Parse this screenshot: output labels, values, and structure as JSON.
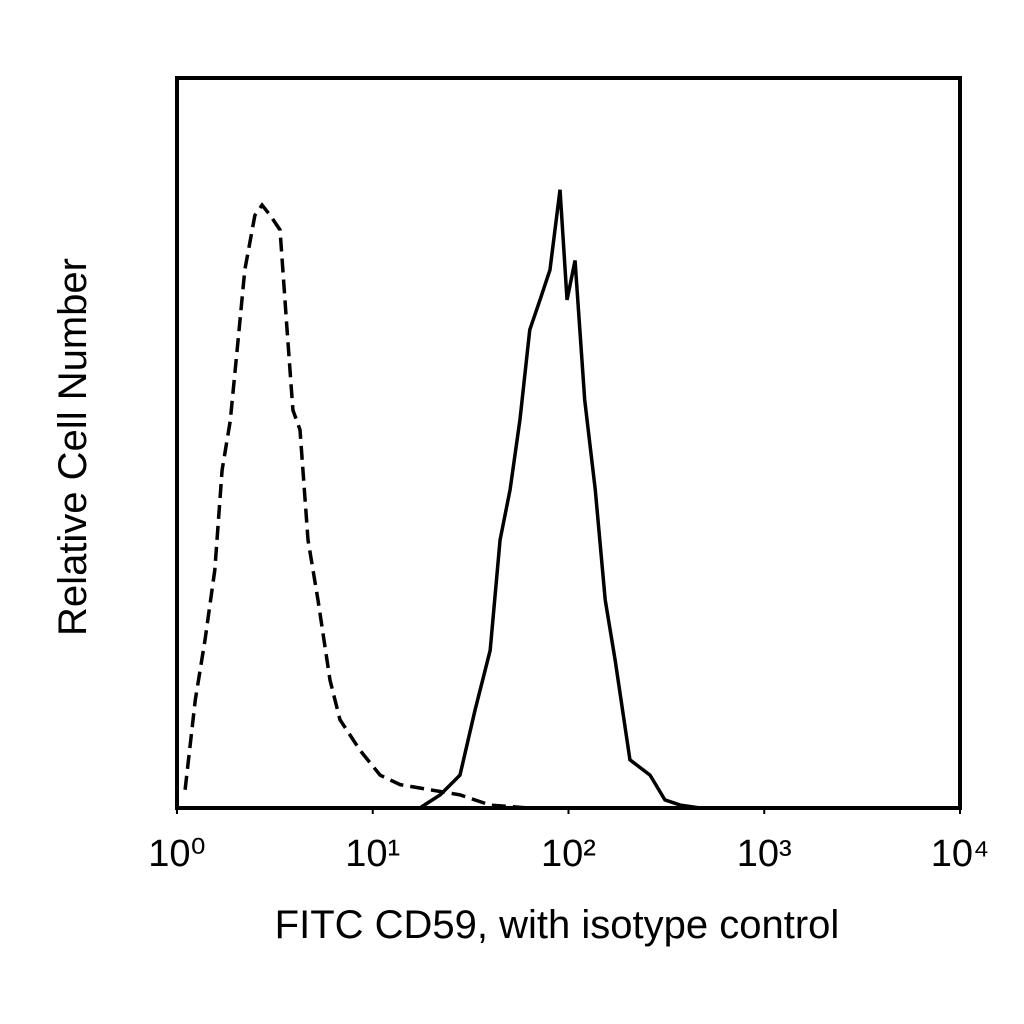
{
  "chart_data": {
    "type": "line",
    "xlabel": "FITC CD59, with isotype control",
    "ylabel": "Relative Cell Number",
    "xscale": "log",
    "xlim": [
      1,
      10000
    ],
    "xticks": [
      {
        "value": 1,
        "label": "10⁰"
      },
      {
        "value": 10,
        "label": "10¹"
      },
      {
        "value": 100,
        "label": "10²"
      },
      {
        "value": 1000,
        "label": "10³"
      },
      {
        "value": 10000,
        "label": "10⁴"
      }
    ],
    "ylim": [
      0,
      100
    ],
    "series": [
      {
        "color": "#000000",
        "dash": true,
        "x": [
          1.1,
          1.24,
          1.39,
          1.56,
          1.7,
          1.87,
          2.05,
          2.22,
          2.5,
          2.72,
          2.99,
          3.36,
          3.65,
          3.91,
          4.25,
          4.67,
          5.25,
          6.05,
          6.8,
          8.61,
          10.9,
          13.8,
          19.6,
          27.9,
          39.8,
          63
        ],
        "values": [
          2.5,
          14.8,
          23,
          32.6,
          46.3,
          53,
          64,
          73.7,
          81.2,
          82.6,
          81.2,
          79.2,
          65.5,
          54.5,
          51.8,
          36.7,
          28.5,
          17.5,
          12.1,
          7.9,
          4.5,
          3.2,
          2.5,
          1.8,
          0.4,
          0
        ]
      },
      {
        "color": "#000000",
        "dash": false,
        "x": [
          17.4,
          22.1,
          27.9,
          33.3,
          39.8,
          44.7,
          50.3,
          56.5,
          63.4,
          71.5,
          80.4,
          90.5,
          98.3,
          108,
          121,
          137,
          154,
          173,
          206,
          261,
          311,
          372,
          470
        ],
        "values": [
          0,
          1.8,
          4.5,
          13.4,
          21.6,
          36.7,
          43.6,
          53.2,
          65.5,
          69.6,
          73.7,
          84.7,
          69.6,
          75,
          55.9,
          43.6,
          28.5,
          20.3,
          6.6,
          4.5,
          1.1,
          0.4,
          0
        ]
      }
    ]
  }
}
